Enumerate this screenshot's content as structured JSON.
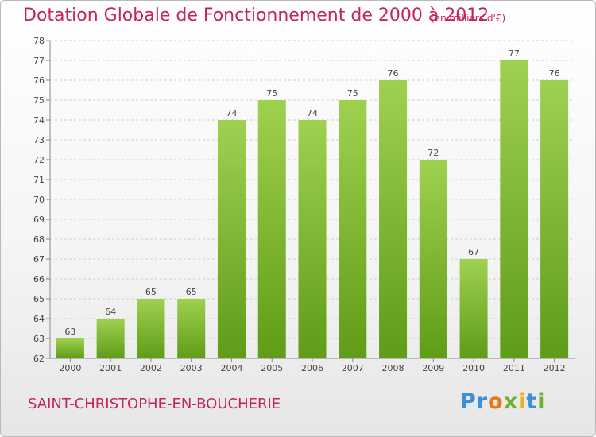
{
  "header": {
    "title": "Dotation Globale de Fonctionnement de 2000 à 2012",
    "unit_note": "(en milliers d'€)"
  },
  "footer": {
    "commune": "SAINT-CHRISTOPHE-EN-BOUCHERIE",
    "logo_text": "Proxiti"
  },
  "colors": {
    "title": "#c4245a",
    "bar_top": "#9fd150",
    "bar_bottom": "#5f9c17",
    "grid": "#cfcfcf",
    "axis_text": "#444444"
  },
  "chart_data": {
    "type": "bar",
    "title": "Dotation Globale de Fonctionnement de 2000 à 2012",
    "xlabel": "",
    "ylabel": "",
    "categories": [
      "2000",
      "2001",
      "2002",
      "2003",
      "2004",
      "2005",
      "2006",
      "2007",
      "2008",
      "2009",
      "2010",
      "2011",
      "2012"
    ],
    "values": [
      63,
      64,
      65,
      65,
      74,
      75,
      74,
      75,
      76,
      72,
      67,
      77,
      76
    ],
    "ylim": [
      62,
      78
    ],
    "yticks": [
      62,
      63,
      64,
      65,
      66,
      67,
      68,
      69,
      70,
      71,
      72,
      73,
      74,
      75,
      76,
      77,
      78
    ],
    "grid": true,
    "data_labels": true
  }
}
